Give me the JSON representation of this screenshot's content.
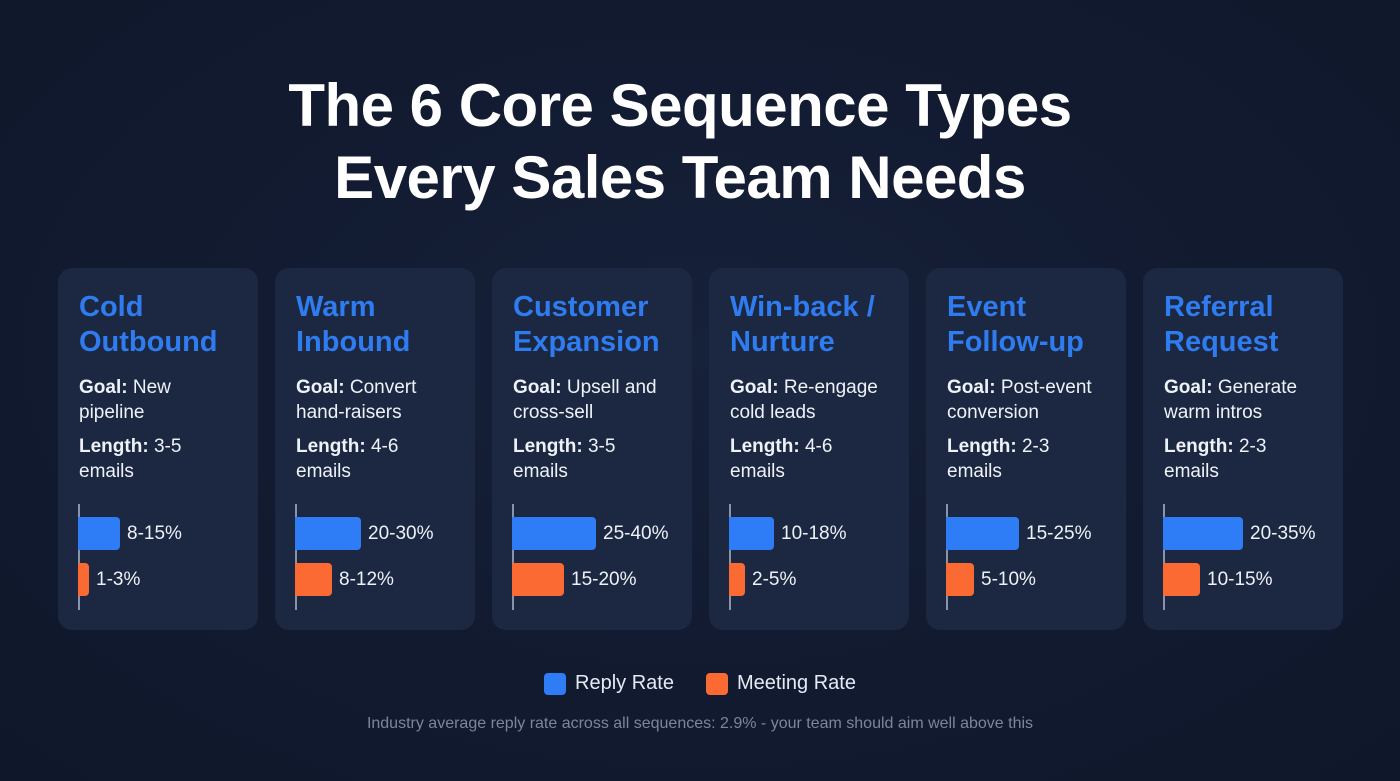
{
  "header": {
    "title_line1": "The 6 Core Sequence Types",
    "title_line2": "Every Sales Team Needs"
  },
  "colors": {
    "background": "#111a2e",
    "card": "#1c2841",
    "accent_title": "#2f7cf0",
    "reply_rate": "#2f7df6",
    "meeting_rate": "#fb6a33"
  },
  "labels": {
    "goal": "Goal:",
    "length": "Length:"
  },
  "cards": [
    {
      "title_line1": "Cold",
      "title_line2": "Outbound",
      "goal": "New pipeline",
      "length": "3-5 emails",
      "reply": "8-15%",
      "meeting": "1-3%",
      "reply_w": 42,
      "meeting_w": 11
    },
    {
      "title_line1": "Warm",
      "title_line2": "Inbound",
      "goal": "Convert hand-raisers",
      "length": "4-6 emails",
      "reply": "20-30%",
      "meeting": "8-12%",
      "reply_w": 66,
      "meeting_w": 37
    },
    {
      "title_line1": "Customer",
      "title_line2": "Expansion",
      "goal": "Upsell and cross-sell",
      "length": "3-5 emails",
      "reply": "25-40%",
      "meeting": "15-20%",
      "reply_w": 84,
      "meeting_w": 52
    },
    {
      "title_line1": "Win-back /",
      "title_line2": "Nurture",
      "goal": "Re-engage cold leads",
      "length": "4-6 emails",
      "reply": "10-18%",
      "meeting": "2-5%",
      "reply_w": 45,
      "meeting_w": 16
    },
    {
      "title_line1": "Event",
      "title_line2": "Follow-up",
      "goal": "Post-event conversion",
      "length": "2-3 emails",
      "reply": "15-25%",
      "meeting": "5-10%",
      "reply_w": 73,
      "meeting_w": 28
    },
    {
      "title_line1": "Referral",
      "title_line2": "Request",
      "goal": "Generate warm intros",
      "length": "2-3 emails",
      "reply": "20-35%",
      "meeting": "10-15%",
      "reply_w": 80,
      "meeting_w": 37
    }
  ],
  "legend": {
    "reply_label": "Reply Rate",
    "meeting_label": "Meeting Rate"
  },
  "footnote": "Industry average reply rate across all sequences: 2.9% - your team should aim well above this",
  "chart_data": {
    "type": "bar",
    "orientation": "horizontal",
    "title": "The 6 Core Sequence Types Every Sales Team Needs",
    "categories": [
      "Cold Outbound",
      "Warm Inbound",
      "Customer Expansion",
      "Win-back / Nurture",
      "Event Follow-up",
      "Referral Request"
    ],
    "series": [
      {
        "name": "Reply Rate",
        "color": "#2f7df6",
        "ranges": [
          "8-15%",
          "20-30%",
          "25-40%",
          "10-18%",
          "15-25%",
          "20-35%"
        ],
        "low": [
          8,
          20,
          25,
          10,
          15,
          20
        ],
        "high": [
          15,
          30,
          40,
          18,
          25,
          35
        ]
      },
      {
        "name": "Meeting Rate",
        "color": "#fb6a33",
        "ranges": [
          "1-3%",
          "8-12%",
          "15-20%",
          "2-5%",
          "5-10%",
          "10-15%"
        ],
        "low": [
          1,
          8,
          15,
          2,
          5,
          10
        ],
        "high": [
          3,
          12,
          20,
          5,
          10,
          15
        ]
      }
    ],
    "goals": [
      "New pipeline",
      "Convert hand-raisers",
      "Upsell and cross-sell",
      "Re-engage cold leads",
      "Post-event conversion",
      "Generate warm intros"
    ],
    "lengths": [
      "3-5 emails",
      "4-6 emails",
      "3-5 emails",
      "4-6 emails",
      "2-3 emails",
      "2-3 emails"
    ],
    "legend_position": "bottom",
    "annotation": "Industry average reply rate across all sequences: 2.9% - your team should aim well above this"
  }
}
